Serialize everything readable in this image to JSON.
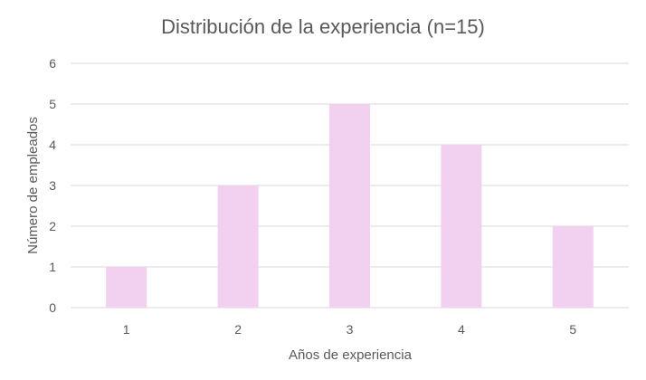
{
  "chart_data": {
    "type": "bar",
    "title": "Distribución de la experiencia (n=15)",
    "xlabel": "Años de experiencia",
    "ylabel": "Número de empleados",
    "categories": [
      "1",
      "2",
      "3",
      "4",
      "5"
    ],
    "values": [
      1,
      3,
      5,
      4,
      2
    ],
    "ylim": [
      0,
      6
    ],
    "yticks": [
      "0",
      "1",
      "2",
      "3",
      "4",
      "5",
      "6"
    ],
    "grid": true,
    "bar_color": "#f2d0f0",
    "grid_color": "#d9d9d9",
    "text_color": "#595959"
  }
}
